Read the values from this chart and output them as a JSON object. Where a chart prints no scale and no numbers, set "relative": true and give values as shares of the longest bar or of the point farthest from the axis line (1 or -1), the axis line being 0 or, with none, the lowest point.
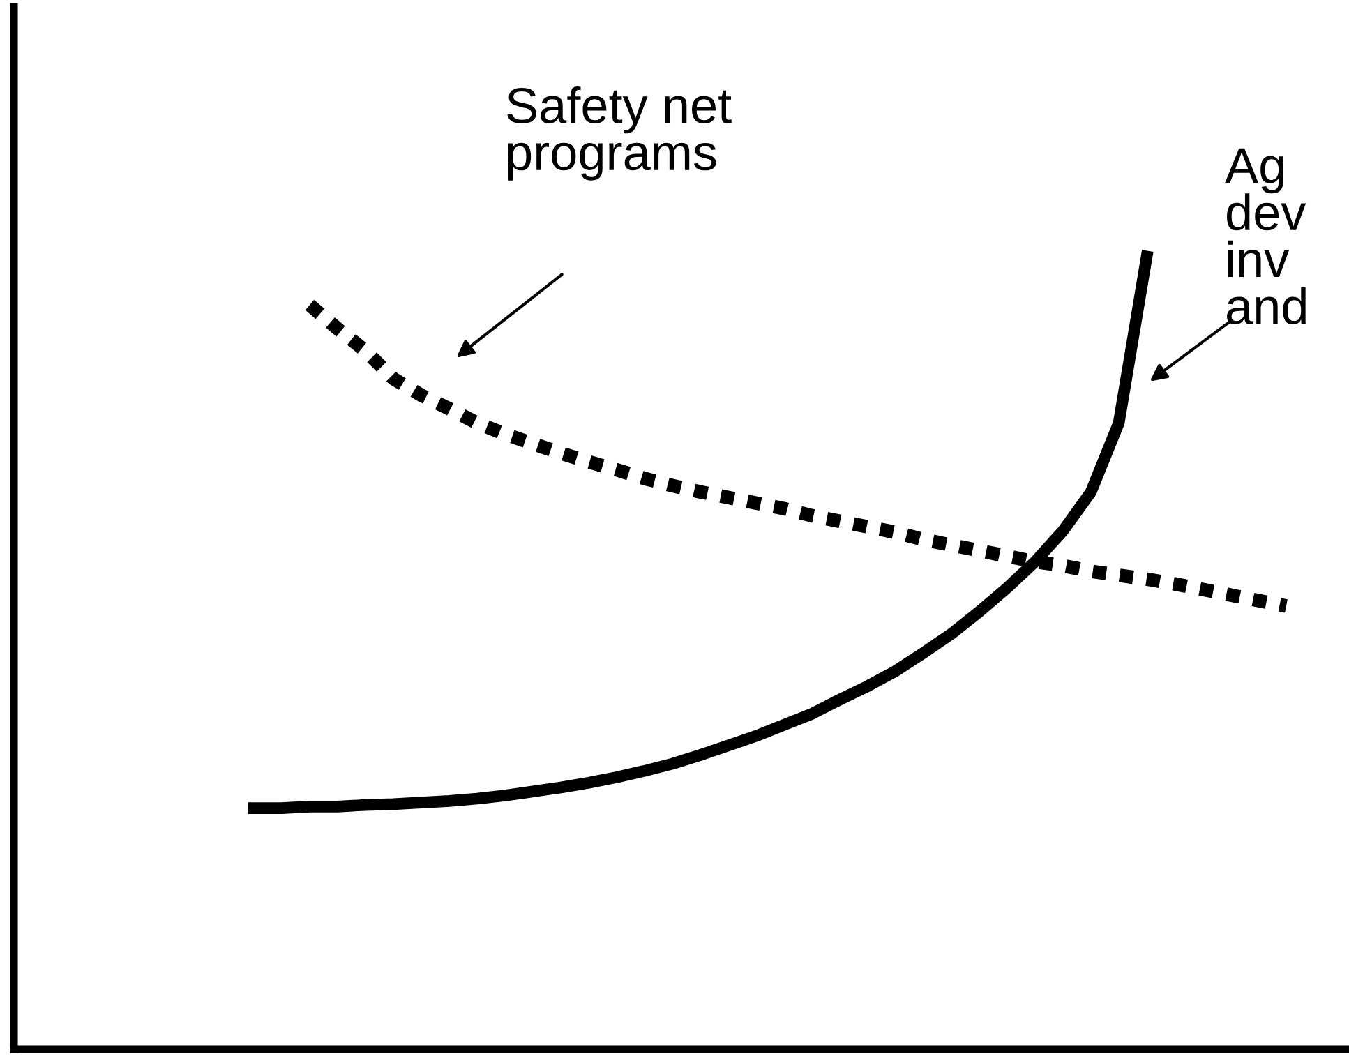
{
  "chart_data": {
    "type": "line",
    "relative": true,
    "categories": [
      null,
      null,
      null,
      null,
      null,
      null,
      null,
      null,
      null,
      null,
      null,
      null,
      null,
      null,
      null,
      null,
      null,
      null,
      null,
      null,
      null,
      null,
      null,
      null,
      null,
      null,
      null,
      null,
      null,
      null,
      null,
      null,
      null,
      null,
      null,
      null,
      null,
      null
    ],
    "series": [
      {
        "color": "#000000",
        "line_style": "solid",
        "values": [
          0.304,
          0.304,
          0.306,
          0.306,
          0.308,
          0.309,
          0.311,
          0.313,
          0.316,
          0.32,
          0.325,
          0.33,
          0.336,
          0.343,
          0.351,
          0.36,
          0.371,
          0.383,
          0.395,
          0.409,
          0.423,
          0.441,
          0.458,
          0.477,
          0.5,
          0.524,
          0.552,
          0.582,
          0.615,
          0.654,
          0.703,
          0.79,
          1.0,
          null,
          null,
          null,
          null,
          null
        ]
      },
      {
        "color": "#000000",
        "line_style": "dotted",
        "values": [
          null,
          null,
          0.939,
          0.909,
          0.881,
          0.846,
          0.825,
          0.808,
          0.79,
          0.776,
          0.764,
          0.752,
          0.741,
          0.731,
          0.72,
          0.711,
          0.703,
          0.696,
          0.689,
          0.682,
          0.673,
          0.666,
          0.659,
          0.652,
          0.643,
          0.636,
          0.629,
          0.622,
          0.615,
          0.61,
          0.603,
          0.598,
          0.593,
          0.587,
          0.58,
          0.573,
          0.566,
          0.559
        ]
      }
    ],
    "annotations": [
      "Safety net\nprograms",
      "Ag\ndev\ninv\nand"
    ],
    "grid": false,
    "legend": false
  }
}
